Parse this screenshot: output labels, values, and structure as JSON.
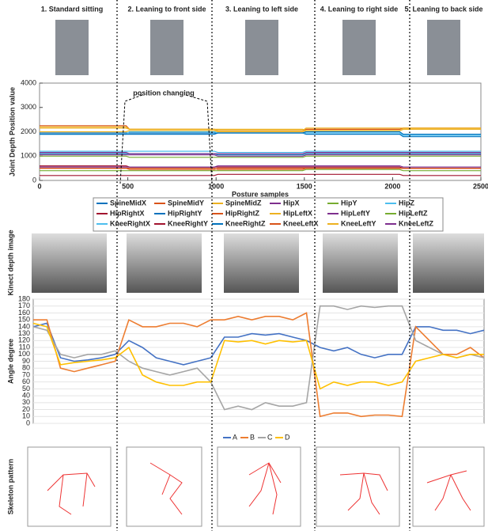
{
  "postures": [
    "1. Standard sitting",
    "2. Leaning to front side",
    "3. Leaning to left side",
    "4. Leaning to right side",
    "5. Leaning to back side"
  ],
  "row_labels": {
    "kinect": "Kinect depth image",
    "skeleton": "Skeleton pattern"
  },
  "chart_data": [
    {
      "type": "line",
      "ylabel": "Joint Depth Position value",
      "xlabel": "Posture samples",
      "annotation": "position changing",
      "x": [
        0,
        250,
        490,
        510,
        750,
        990,
        1010,
        1250,
        1490,
        1510,
        1750,
        2040,
        2060,
        2500
      ],
      "xlim": [
        0,
        2500
      ],
      "xticks": [
        0,
        500,
        1000,
        1500,
        2000,
        2500
      ],
      "ylim": [
        0,
        4000
      ],
      "yticks": [
        0,
        1000,
        2000,
        3000,
        4000
      ],
      "grid": false,
      "series": [
        {
          "name": "SpineMidX",
          "color": "#0072BD",
          "values": [
            1950,
            1950,
            1950,
            1950,
            1950,
            1950,
            1950,
            1950,
            1950,
            1900,
            1900,
            1900,
            1800,
            1800
          ]
        },
        {
          "name": "SpineMidY",
          "color": "#D95319",
          "values": [
            2250,
            2250,
            2250,
            2100,
            2100,
            2100,
            2050,
            2050,
            2050,
            2100,
            2100,
            2100,
            2150,
            2150
          ]
        },
        {
          "name": "SpineMidZ",
          "color": "#EDB120",
          "values": [
            2200,
            2200,
            2200,
            2100,
            2100,
            2100,
            2050,
            2050,
            2050,
            2150,
            2150,
            2150,
            2150,
            2150
          ]
        },
        {
          "name": "HipX",
          "color": "#7E2F8E",
          "values": [
            1050,
            1050,
            1050,
            1050,
            1050,
            1050,
            1000,
            1000,
            1000,
            1050,
            1050,
            1050,
            1050,
            1050
          ]
        },
        {
          "name": "HipY",
          "color": "#77AC30",
          "values": [
            1000,
            1000,
            1000,
            950,
            950,
            950,
            950,
            950,
            950,
            1000,
            1000,
            1000,
            1000,
            1000
          ]
        },
        {
          "name": "HipZ",
          "color": "#4DBEEE",
          "values": [
            1900,
            1900,
            1900,
            2000,
            2000,
            2000,
            1950,
            1950,
            1950,
            1950,
            1950,
            1950,
            1850,
            1850
          ]
        },
        {
          "name": "HipRightX",
          "color": "#A2142F",
          "values": [
            600,
            600,
            600,
            550,
            550,
            550,
            550,
            550,
            550,
            550,
            550,
            550,
            500,
            500
          ]
        },
        {
          "name": "HipRightY",
          "color": "#0072BD",
          "values": [
            1100,
            1100,
            1100,
            1100,
            1100,
            1100,
            1050,
            1050,
            1050,
            1100,
            1100,
            1100,
            1100,
            1100
          ]
        },
        {
          "name": "HipRightZ",
          "color": "#D95319",
          "values": [
            500,
            500,
            500,
            500,
            500,
            500,
            450,
            450,
            450,
            500,
            500,
            500,
            500,
            500
          ]
        },
        {
          "name": "HipLeftX",
          "color": "#EDB120",
          "values": [
            2000,
            2000,
            2000,
            2050,
            2050,
            2050,
            2000,
            2000,
            2000,
            2050,
            2050,
            2050,
            2100,
            2100
          ]
        },
        {
          "name": "HipLeftY",
          "color": "#7E2F8E",
          "values": [
            1150,
            1150,
            1150,
            1100,
            1100,
            1100,
            1100,
            1100,
            1100,
            1150,
            1150,
            1150,
            1150,
            1150
          ]
        },
        {
          "name": "HipLeftZ",
          "color": "#77AC30",
          "values": [
            400,
            400,
            400,
            400,
            400,
            400,
            400,
            400,
            400,
            450,
            450,
            450,
            400,
            400
          ]
        },
        {
          "name": "KneeRightX",
          "color": "#4DBEEE",
          "values": [
            1200,
            1200,
            1200,
            1200,
            1200,
            1200,
            1150,
            1150,
            1150,
            1200,
            1200,
            1200,
            1200,
            1200
          ]
        },
        {
          "name": "KneeRightY",
          "color": "#A2142F",
          "values": [
            200,
            200,
            200,
            200,
            200,
            200,
            250,
            250,
            250,
            250,
            250,
            250,
            200,
            200
          ]
        },
        {
          "name": "KneeRightZ",
          "color": "#0072BD",
          "values": [
            1900,
            1900,
            1900,
            1900,
            1900,
            1900,
            1950,
            1950,
            1950,
            2000,
            2000,
            2000,
            1900,
            1900
          ]
        },
        {
          "name": "KneeLeftX",
          "color": "#D95319",
          "values": [
            500,
            500,
            500,
            450,
            450,
            450,
            500,
            500,
            500,
            500,
            500,
            500,
            500,
            500
          ]
        },
        {
          "name": "KneeLeftY",
          "color": "#EDB120",
          "values": [
            2150,
            2150,
            2150,
            2100,
            2100,
            2100,
            2100,
            2100,
            2100,
            2050,
            2050,
            2050,
            2100,
            2100
          ]
        },
        {
          "name": "KneeLeftZ",
          "color": "#7E2F8E",
          "values": [
            550,
            550,
            550,
            550,
            550,
            550,
            600,
            600,
            600,
            600,
            600,
            600,
            550,
            550
          ]
        }
      ]
    },
    {
      "type": "line",
      "ylabel": "Angle degree",
      "x": [
        0,
        10,
        20,
        30,
        40,
        50,
        60,
        70,
        80,
        90,
        100,
        110,
        120,
        130,
        140,
        150,
        160,
        170,
        180,
        190,
        200,
        210,
        220,
        230,
        240,
        250,
        260,
        270,
        280,
        290,
        300,
        310,
        320,
        330
      ],
      "xlim": [
        0,
        330
      ],
      "ylim": [
        0,
        180
      ],
      "yticks": [
        0,
        10,
        20,
        30,
        40,
        50,
        60,
        70,
        80,
        90,
        100,
        110,
        120,
        130,
        140,
        150,
        160,
        170,
        180
      ],
      "grid": true,
      "series": [
        {
          "name": "A",
          "color": "#4472C4",
          "values": [
            140,
            145,
            95,
            90,
            92,
            95,
            100,
            120,
            110,
            95,
            90,
            85,
            90,
            95,
            125,
            125,
            130,
            128,
            130,
            125,
            120,
            110,
            105,
            110,
            100,
            95,
            100,
            100,
            140,
            140,
            135,
            135,
            130,
            135
          ]
        },
        {
          "name": "B",
          "color": "#ED7D31",
          "values": [
            150,
            150,
            80,
            75,
            80,
            85,
            90,
            150,
            140,
            140,
            145,
            145,
            140,
            150,
            150,
            155,
            150,
            155,
            155,
            150,
            160,
            10,
            15,
            15,
            10,
            12,
            12,
            10,
            140,
            120,
            100,
            100,
            110,
            95
          ]
        },
        {
          "name": "C",
          "color": "#A5A5A5",
          "values": [
            140,
            135,
            100,
            95,
            100,
            100,
            105,
            90,
            80,
            75,
            70,
            75,
            80,
            60,
            20,
            25,
            20,
            30,
            25,
            25,
            30,
            170,
            170,
            165,
            170,
            168,
            170,
            170,
            120,
            110,
            100,
            95,
            100,
            95
          ]
        },
        {
          "name": "D",
          "color": "#FFC000",
          "values": [
            145,
            140,
            85,
            88,
            90,
            92,
            95,
            110,
            70,
            60,
            55,
            55,
            60,
            60,
            120,
            118,
            120,
            115,
            120,
            118,
            120,
            50,
            60,
            55,
            60,
            60,
            55,
            60,
            90,
            95,
            100,
            95,
            100,
            100
          ]
        }
      ]
    }
  ]
}
